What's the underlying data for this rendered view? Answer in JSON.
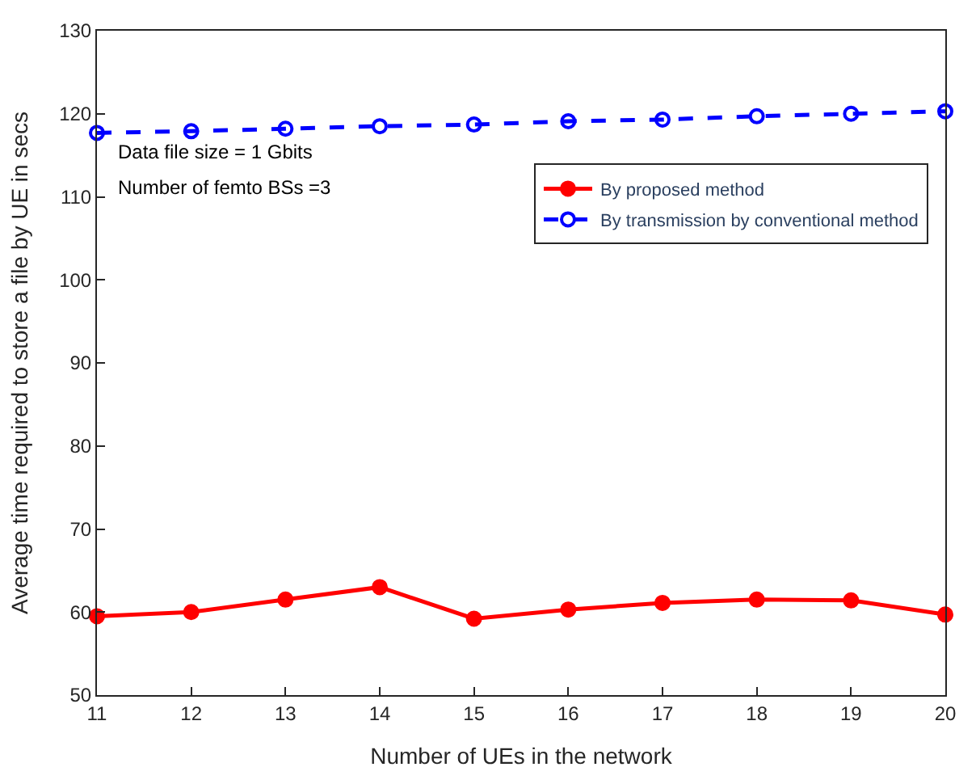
{
  "chart_data": {
    "type": "line",
    "xlabel": "Number of UEs in the network",
    "ylabel": "Average time required to store a file by UE in secs",
    "x": [
      11,
      12,
      13,
      14,
      15,
      16,
      17,
      18,
      19,
      20
    ],
    "series": [
      {
        "name": "By proposed method",
        "color": "#ff0000",
        "marker": "circle",
        "line_style": "solid",
        "values": [
          59.5,
          60.0,
          61.5,
          63.0,
          59.2,
          60.3,
          61.1,
          61.5,
          61.4,
          59.7
        ]
      },
      {
        "name": "By transmission by conventional method",
        "color": "#0000ff",
        "marker": "circle",
        "line_style": "dashed",
        "values": [
          117.7,
          117.9,
          118.2,
          118.5,
          118.7,
          119.1,
          119.3,
          119.7,
          120.0,
          120.3
        ]
      }
    ],
    "annotations": [
      "Data file size = 1 Gbits",
      "Number of femto BSs =3"
    ],
    "xlim": [
      11,
      20
    ],
    "xticks": [
      11,
      12,
      13,
      14,
      15,
      16,
      17,
      18,
      19,
      20
    ],
    "ylim": [
      50,
      130
    ],
    "yticks": [
      50,
      60,
      70,
      80,
      90,
      100,
      110,
      120,
      130
    ],
    "legend": "top right"
  }
}
